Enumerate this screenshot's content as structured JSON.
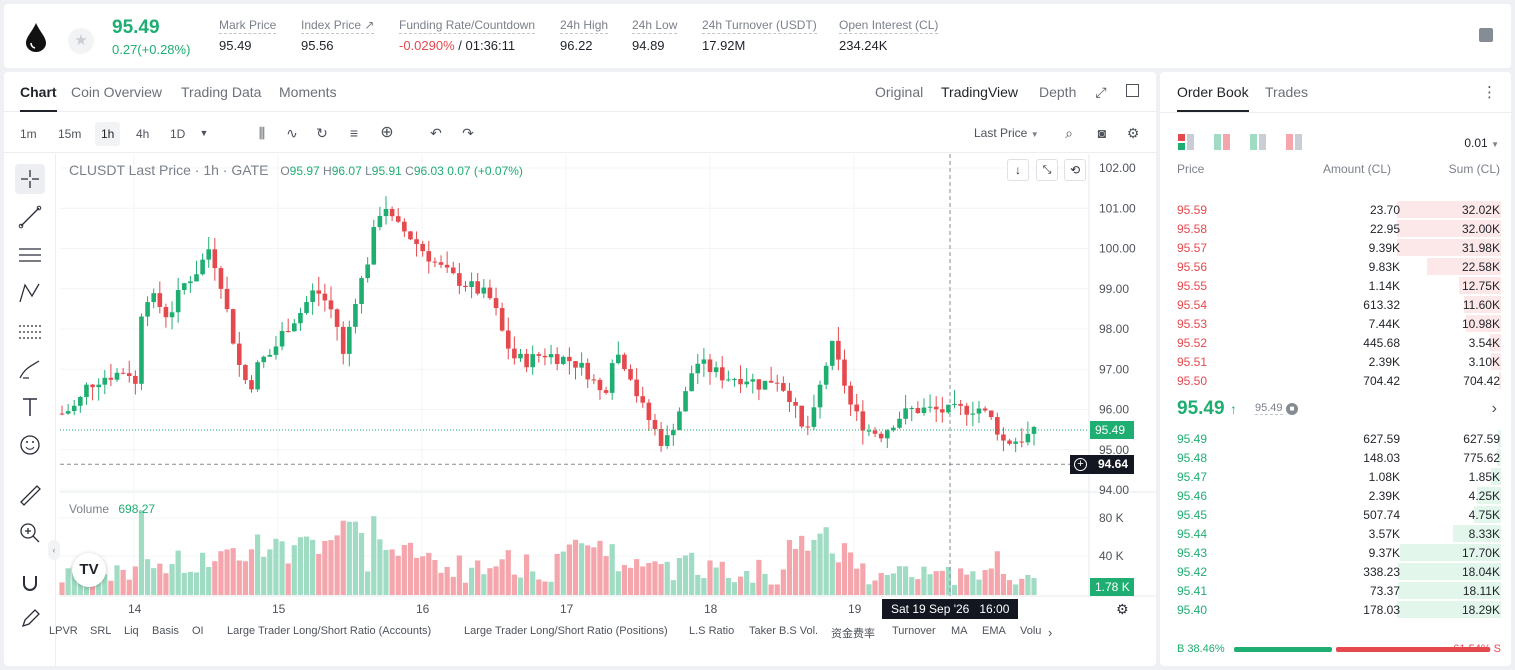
{
  "header": {
    "price": "95.49",
    "change": "0.27(+0.28%)",
    "stats": [
      {
        "label": "Mark Price",
        "value": "95.49"
      },
      {
        "label": "Index Price ↗",
        "value": "95.56"
      },
      {
        "label": "Funding Rate/Countdown",
        "value_neg": "-0.0290%",
        "value": " / 01:36:11"
      },
      {
        "label": "24h High",
        "value": "96.22"
      },
      {
        "label": "24h Low",
        "value": "94.89"
      },
      {
        "label": "24h Turnover (USDT)",
        "value": "17.92M"
      },
      {
        "label": "Open Interest (CL)",
        "value": "234.24K"
      }
    ]
  },
  "chart_tabs": [
    "Chart",
    "Coin Overview",
    "Trading Data",
    "Moments"
  ],
  "view_tabs": [
    "Original",
    "TradingView",
    "Depth"
  ],
  "timeframes": [
    "1m",
    "15m",
    "1h",
    "4h",
    "1D"
  ],
  "price_source": "Last Price",
  "legend": {
    "symbol": "CLUSDT Last Price · 1h · GATE",
    "o_label": "O",
    "o": "95.97",
    "h_label": "H",
    "h": "96.07",
    "l_label": "L",
    "l": "95.91",
    "c_label": "C",
    "c": "96.03",
    "chg": "0.07 (+0.07%)"
  },
  "volume_legend": {
    "label": "Volume",
    "value": "698.27"
  },
  "price_axis": [
    "102.00",
    "101.00",
    "100.00",
    "99.00",
    "98.00",
    "97.00",
    "96.00",
    "95.00",
    "94.00"
  ],
  "volume_axis": [
    "80 K",
    "40 K"
  ],
  "current_price_label": "95.49",
  "crosshair_price_label": "94.64",
  "current_volume_label": "1.78 K",
  "time_axis": [
    "14",
    "15",
    "16",
    "17",
    "18",
    "19"
  ],
  "crosshair_time": "Sat 19 Sep '26",
  "crosshair_hour": "16:00",
  "indicators": [
    "LPVR",
    "SRL",
    "Liq",
    "Basis",
    "OI",
    "Large Trader Long/Short Ratio (Accounts)",
    "Large Trader Long/Short Ratio (Positions)",
    "L.S Ratio",
    "Taker B.S Vol.",
    "资金费率",
    "Turnover",
    "MA",
    "EMA",
    "Volu"
  ],
  "chart_data": {
    "type": "candlestick",
    "x_ticks": [
      "14",
      "15",
      "16",
      "17",
      "18",
      "19"
    ],
    "ylim": [
      94.0,
      102.2
    ],
    "legend_ohlc": {
      "open": 95.97,
      "high": 96.07,
      "low": 95.91,
      "close": 96.03
    },
    "last_price": 95.49
  },
  "orderbook": {
    "tabs": [
      "Order Book",
      "Trades"
    ],
    "precision": "0.01",
    "columns": [
      "Price",
      "Amount (CL)",
      "Sum (CL)"
    ],
    "asks": [
      {
        "price": "95.59",
        "amount": "23.70",
        "sum": "32.02K",
        "depth": 1.0
      },
      {
        "price": "95.58",
        "amount": "22.95",
        "sum": "32.00K",
        "depth": 1.0
      },
      {
        "price": "95.57",
        "amount": "9.39K",
        "sum": "31.98K",
        "depth": 1.0
      },
      {
        "price": "95.56",
        "amount": "9.83K",
        "sum": "22.58K",
        "depth": 0.71
      },
      {
        "price": "95.55",
        "amount": "1.14K",
        "sum": "12.75K",
        "depth": 0.4
      },
      {
        "price": "95.54",
        "amount": "613.32",
        "sum": "11.60K",
        "depth": 0.36
      },
      {
        "price": "95.53",
        "amount": "7.44K",
        "sum": "10.98K",
        "depth": 0.34
      },
      {
        "price": "95.52",
        "amount": "445.68",
        "sum": "3.54K",
        "depth": 0.11
      },
      {
        "price": "95.51",
        "amount": "2.39K",
        "sum": "3.10K",
        "depth": 0.1
      },
      {
        "price": "95.50",
        "amount": "704.42",
        "sum": "704.42",
        "depth": 0.02
      }
    ],
    "mid": {
      "price": "95.49",
      "arrow": "↑",
      "mark": "95.49"
    },
    "bids": [
      {
        "price": "95.49",
        "amount": "627.59",
        "sum": "627.59",
        "depth": 0.03
      },
      {
        "price": "95.48",
        "amount": "148.03",
        "sum": "775.62",
        "depth": 0.04
      },
      {
        "price": "95.47",
        "amount": "1.08K",
        "sum": "1.85K",
        "depth": 0.1
      },
      {
        "price": "95.46",
        "amount": "2.39K",
        "sum": "4.25K",
        "depth": 0.23
      },
      {
        "price": "95.45",
        "amount": "507.74",
        "sum": "4.75K",
        "depth": 0.26
      },
      {
        "price": "95.44",
        "amount": "3.57K",
        "sum": "8.33K",
        "depth": 0.46
      },
      {
        "price": "95.43",
        "amount": "9.37K",
        "sum": "17.70K",
        "depth": 0.97
      },
      {
        "price": "95.42",
        "amount": "338.23",
        "sum": "18.04K",
        "depth": 0.99
      },
      {
        "price": "95.41",
        "amount": "73.37",
        "sum": "18.11K",
        "depth": 0.99
      },
      {
        "price": "95.40",
        "amount": "178.03",
        "sum": "18.29K",
        "depth": 1.0
      }
    ],
    "buy_ratio": "B 38.46%",
    "sell_ratio": "61.54% S",
    "buy_fraction": 0.3846
  },
  "colors": {
    "up": "#1fae72",
    "down": "#e5484d",
    "up_vol": "#9fdcc3",
    "down_vol": "#f4a6ac"
  }
}
